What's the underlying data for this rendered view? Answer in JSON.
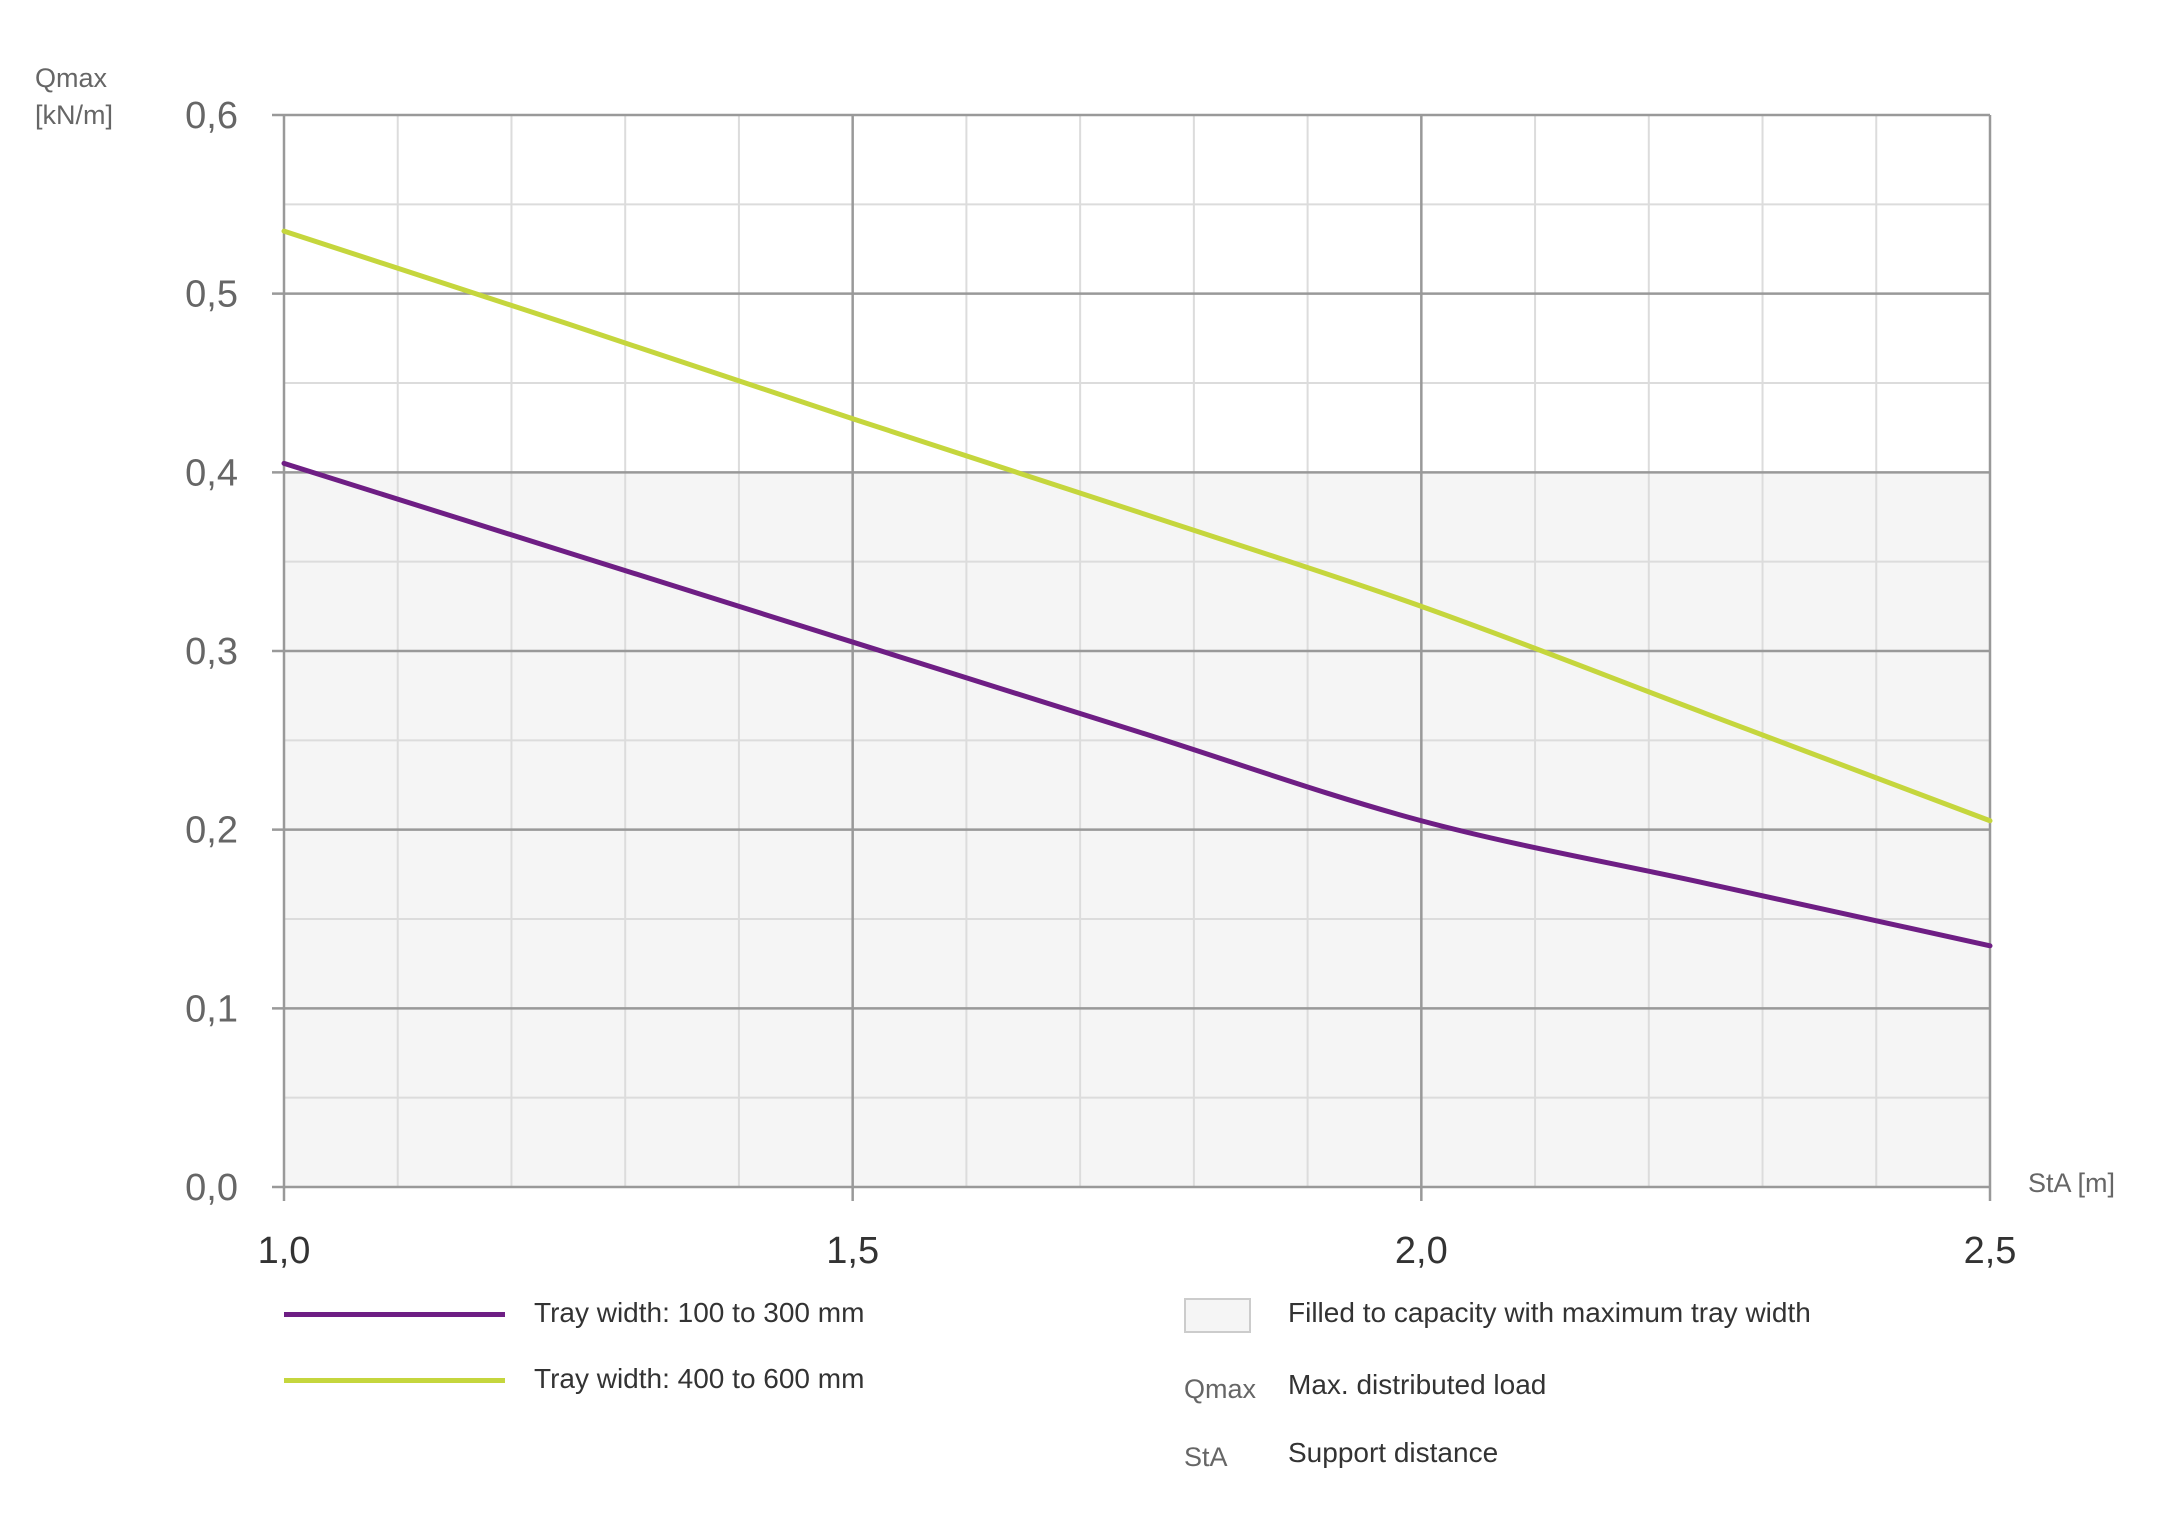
{
  "chart_data": {
    "type": "line",
    "ylabel_line1": "Qmax",
    "ylabel_line2": "[kN/m]",
    "xlabel": "StA [m]",
    "xlim": [
      1.0,
      2.5
    ],
    "ylim": [
      0.0,
      0.6
    ],
    "x_ticks": [
      "1,0",
      "1,5",
      "2,0",
      "2,5"
    ],
    "x_tick_values": [
      1.0,
      1.5,
      2.0,
      2.5
    ],
    "y_ticks": [
      "0,0",
      "0,1",
      "0,2",
      "0,3",
      "0,4",
      "0,5",
      "0,6"
    ],
    "y_tick_values": [
      0,
      0.1,
      0.2,
      0.3,
      0.4,
      0.5,
      0.6
    ],
    "grid": true,
    "shaded_region": {
      "label": "Filled to capacity with maximum tray width",
      "y_from": 0.0,
      "y_to": 0.4,
      "color": "#f5f5f5"
    },
    "series": [
      {
        "name": "Tray width: 100 to 300 mm",
        "color": "#6e1e84",
        "x": [
          1.0,
          1.25,
          1.5,
          1.75,
          2.0,
          2.25,
          2.5
        ],
        "y": [
          0.405,
          0.355,
          0.305,
          0.255,
          0.205,
          0.17,
          0.135
        ]
      },
      {
        "name": "Tray width: 400 to 600 mm",
        "color": "#c5d63d",
        "x": [
          1.0,
          1.25,
          1.5,
          1.75,
          2.0,
          2.25,
          2.5
        ],
        "y": [
          0.535,
          0.483,
          0.43,
          0.378,
          0.325,
          0.265,
          0.205
        ]
      }
    ],
    "legend_placement": "bottom",
    "abbreviations": [
      {
        "abbr": "Qmax",
        "meaning": "Max. distributed load"
      },
      {
        "abbr": "StA",
        "meaning": "Support distance"
      }
    ]
  }
}
